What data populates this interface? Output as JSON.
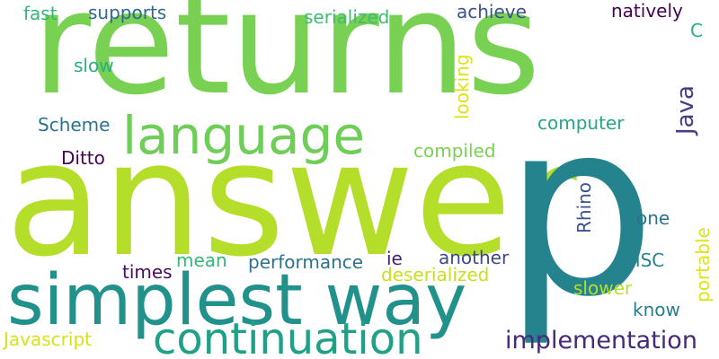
{
  "words": {
    "returns": "returns",
    "answer": "answer",
    "p": "p",
    "simplest_way": "simplest way",
    "language": "language",
    "continuation": "continuation",
    "implementation": "implementation",
    "fast": "fast",
    "supports": "supports",
    "serialized": "serialized",
    "achieve": "achieve",
    "natively": "natively",
    "c": "C",
    "slow": "slow",
    "looking": "looking",
    "java": "Java",
    "scheme": "Scheme",
    "computer": "computer",
    "ditto": "Ditto",
    "compiled": "compiled",
    "rhino": "Rhino",
    "one": "one",
    "portable": "portable",
    "mean": "mean",
    "ie": "ie",
    "another": "another",
    "sisc": "SISC",
    "times": "times",
    "performance": "performance",
    "deserialized": "deserialized",
    "slower": "slower",
    "know": "know",
    "javascript": "Javascript"
  },
  "colors": {
    "background": "#ffffff",
    "returns": "#78d152",
    "answer": "#b5de2b",
    "p": "#25838e",
    "simplest_way": "#21918c",
    "language": "#6ece58",
    "continuation": "#1fa187",
    "implementation": "#482878",
    "fast": "#35b779",
    "supports": "#31688e",
    "serialized": "#3dbc74",
    "achieve": "#3b528b",
    "natively": "#440154",
    "c": "#29af7f",
    "slow": "#29af7f",
    "looking": "#dde318",
    "java": "#433e85",
    "scheme": "#2c728e",
    "computer": "#22a884",
    "ditto": "#440154",
    "compiled": "#7ad151",
    "rhino": "#3b528b",
    "one": "#2c728e",
    "portable": "#dde318",
    "mean": "#35b779",
    "ie": "#481f70",
    "another": "#3e4989",
    "sisc": "#26828e",
    "times": "#470d60",
    "performance": "#2c728e",
    "deserialized": "#c8e020",
    "slower": "#b5de2b",
    "know": "#287d8e",
    "javascript": "#d8e219"
  }
}
